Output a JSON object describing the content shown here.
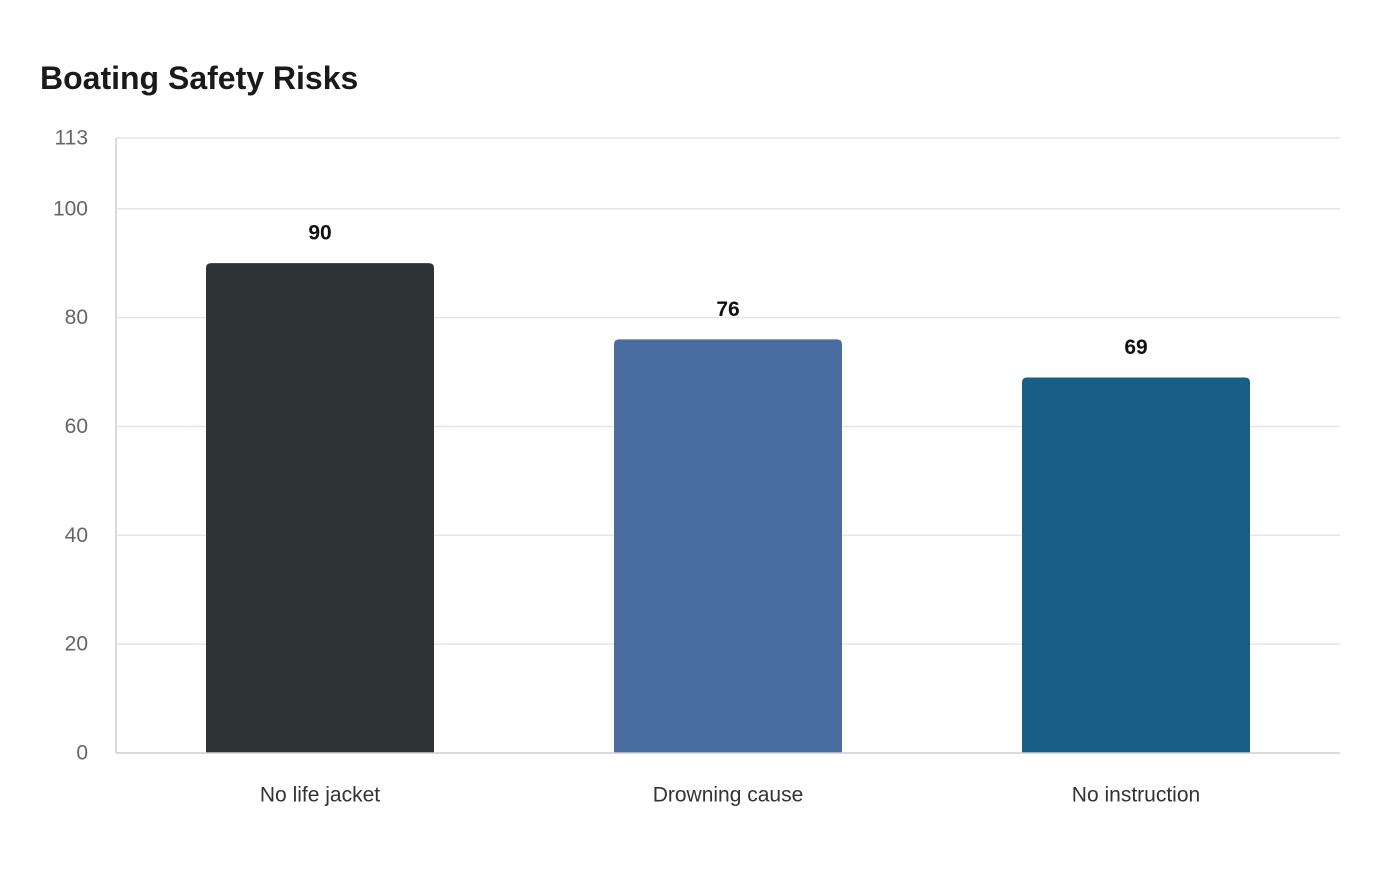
{
  "chart_data": {
    "type": "bar",
    "title": "Boating Safety Risks",
    "categories": [
      "No life jacket",
      "Drowning cause",
      "No instruction"
    ],
    "values": [
      90,
      76,
      69
    ],
    "colors": [
      "#2d3436",
      "#4a6da0",
      "#175f87"
    ],
    "ylim": [
      0,
      113
    ],
    "yticks": [
      0,
      20,
      40,
      60,
      80,
      100,
      113
    ],
    "xlabel": "",
    "ylabel": "",
    "grid": true,
    "legend": "none",
    "data_labels": true
  }
}
